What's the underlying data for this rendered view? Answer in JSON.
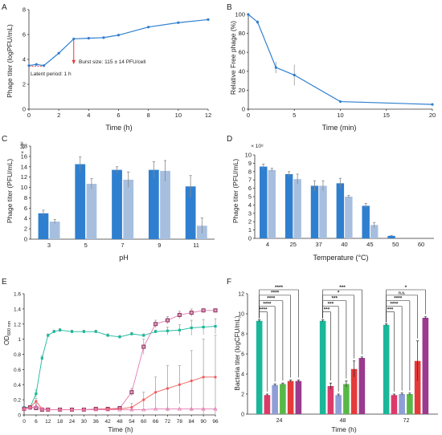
{
  "colors": {
    "blue": "#2f7fd0",
    "lightblue": "#a7bfdf",
    "teal": "#1bb79a",
    "maroon": "#8a2b55",
    "salmon": "#f05a5a",
    "pink": "#e37bb0",
    "purple": "#9b3a8e",
    "periwinkle": "#8e9ed6",
    "green": "#58b847",
    "red": "#e53a3a",
    "crimson": "#dc3b6a",
    "errbar": "#999999"
  },
  "chart_data": [
    {
      "panel": "A",
      "type": "line",
      "xlabel": "Time (h)",
      "ylabel": "Phage titer (logPFU/mL)",
      "xlim": [
        0,
        12
      ],
      "ylim": [
        0,
        8
      ],
      "xticks": [
        0,
        2,
        4,
        6,
        8,
        10,
        12
      ],
      "yticks": [
        0,
        2,
        4,
        6,
        8
      ],
      "x": [
        0,
        0.5,
        1,
        2,
        3,
        4,
        5,
        6,
        8,
        10,
        12
      ],
      "y": [
        3.5,
        3.6,
        3.5,
        4.5,
        5.65,
        5.7,
        5.75,
        5.95,
        6.6,
        6.95,
        7.2
      ],
      "annotations": [
        "Burst size: 115 ± 14 PFU/cell",
        "Latent period: 1 h"
      ]
    },
    {
      "panel": "B",
      "type": "line",
      "xlabel": "Time (min)",
      "ylabel": "Relative Free phage (%)",
      "xlim": [
        0,
        20
      ],
      "ylim": [
        0,
        100
      ],
      "xticks": [
        0,
        5,
        10,
        15,
        20
      ],
      "yticks": [
        0,
        20,
        40,
        60,
        80,
        100
      ],
      "x": [
        0,
        1,
        3,
        5,
        10,
        20
      ],
      "y": [
        100,
        92,
        44,
        36,
        8,
        5
      ],
      "err": [
        0,
        2,
        6,
        11,
        1,
        1
      ]
    },
    {
      "panel": "C",
      "type": "bar",
      "xlabel": "pH",
      "ylabel": "Phage titer (PFU/mL)",
      "yscale_label": "× 10⁸",
      "ylim": [
        0,
        18
      ],
      "yticks": [
        0,
        2,
        4,
        6,
        8,
        10,
        12,
        14,
        16,
        18
      ],
      "categories": [
        "3",
        "5",
        "7",
        "9",
        "11"
      ],
      "series": [
        {
          "values": [
            5.0,
            14.5,
            13.4,
            13.4,
            10.2
          ],
          "err": [
            0.6,
            1.4,
            0.6,
            1.6,
            2.1
          ]
        },
        {
          "values": [
            3.4,
            10.7,
            11.5,
            13.2,
            2.6
          ],
          "err": [
            0.4,
            1.0,
            1.5,
            2.0,
            1.5
          ]
        }
      ]
    },
    {
      "panel": "D",
      "type": "bar",
      "xlabel": "Temperature (°C)",
      "ylabel": "Phage titer (PFU/mL)",
      "yscale_label": "× 10⁸",
      "ylim": [
        0,
        10
      ],
      "yticks": [
        0,
        1,
        2,
        3,
        4,
        5,
        6,
        7,
        8,
        9,
        10
      ],
      "categories": [
        "4",
        "25",
        "37",
        "40",
        "45",
        "50",
        "60"
      ],
      "series": [
        {
          "values": [
            8.6,
            7.7,
            6.3,
            6.6,
            3.9,
            0.3,
            0
          ],
          "err": [
            0.3,
            0.3,
            0.6,
            0.6,
            0.3,
            0.05,
            0
          ]
        },
        {
          "values": [
            8.2,
            7.1,
            6.3,
            5.0,
            1.6,
            0,
            0
          ],
          "err": [
            0.2,
            0.6,
            0.6,
            0.15,
            0.3,
            0,
            0
          ]
        }
      ]
    },
    {
      "panel": "E",
      "type": "line",
      "xlabel": "Time (h)",
      "ylabel": "OD600 nm",
      "ylabel_main": "OD",
      "ylabel_sub": "600 nm",
      "xlim": [
        0,
        96
      ],
      "ylim": [
        0,
        1.6
      ],
      "xticks": [
        0,
        6,
        12,
        18,
        24,
        30,
        36,
        42,
        48,
        54,
        60,
        66,
        72,
        78,
        84,
        90,
        96
      ],
      "yticks": [
        0,
        0.2,
        0.4,
        0.6,
        0.8,
        1.0,
        1.2,
        1.4,
        1.6
      ],
      "ytick_labels": [
        "0",
        "0.2",
        "0.4",
        "0.6",
        "0.8",
        "1",
        "1.2",
        "1.4",
        "1.6"
      ],
      "series": [
        {
          "x": [
            0,
            3,
            6,
            9,
            12,
            15,
            18,
            24,
            30,
            36,
            42,
            48,
            54,
            60,
            66,
            72,
            78,
            84,
            90,
            96
          ],
          "y": [
            0.1,
            0.1,
            0.28,
            0.75,
            1.05,
            1.1,
            1.12,
            1.1,
            1.1,
            1.1,
            1.05,
            1.03,
            1.07,
            1.05,
            1.1,
            1.11,
            1.12,
            1.15,
            1.16,
            1.17
          ],
          "err": [
            0,
            0,
            0.05,
            0.03,
            0.02,
            0.02,
            0.02,
            0.02,
            0.02,
            0.02,
            0.02,
            0.02,
            0.02,
            0.02,
            0.02,
            0.05,
            0.07,
            0.1,
            0.1,
            0.1
          ]
        },
        {
          "x": [
            0,
            3,
            6,
            9,
            12,
            18,
            24,
            30,
            36,
            42,
            48,
            54,
            60,
            66,
            72,
            78,
            84,
            90,
            96
          ],
          "y": [
            0.08,
            0.1,
            0.09,
            0.07,
            0.07,
            0.07,
            0.07,
            0.07,
            0.08,
            0.08,
            0.09,
            0.3,
            0.9,
            1.2,
            1.25,
            1.32,
            1.35,
            1.38,
            1.38
          ],
          "err": [
            0,
            0,
            0.02,
            0,
            0,
            0,
            0,
            0,
            0,
            0,
            0,
            0.05,
            0.1,
            0.05,
            0.05,
            0.05,
            0.05,
            0.02,
            0.02
          ]
        },
        {
          "x": [
            0,
            3,
            6,
            9,
            12,
            18,
            24,
            30,
            36,
            42,
            48,
            54,
            60,
            66,
            72,
            78,
            84,
            90,
            96
          ],
          "y": [
            0.08,
            0.1,
            0.18,
            0.08,
            0.07,
            0.07,
            0.07,
            0.07,
            0.07,
            0.08,
            0.08,
            0.1,
            0.2,
            0.3,
            0.35,
            0.4,
            0.45,
            0.5,
            0.5
          ],
          "err": [
            0,
            0,
            0.04,
            0,
            0,
            0,
            0,
            0,
            0,
            0,
            0,
            0.05,
            0.1,
            0.2,
            0.3,
            0.25,
            0.4,
            0.5,
            0.55
          ]
        },
        {
          "x": [
            0,
            3,
            6,
            9,
            12,
            18,
            24,
            30,
            36,
            42,
            48,
            54,
            60,
            66,
            72,
            78,
            84,
            90,
            96
          ],
          "y": [
            0.08,
            0.09,
            0.12,
            0.08,
            0.07,
            0.07,
            0.07,
            0.07,
            0.07,
            0.07,
            0.07,
            0.07,
            0.07,
            0.08,
            0.08,
            0.08,
            0.08,
            0.08,
            0.08
          ],
          "err": [
            0,
            0,
            0.03,
            0,
            0,
            0,
            0,
            0,
            0,
            0,
            0,
            0,
            0,
            0,
            0,
            0,
            0,
            0,
            0
          ]
        }
      ]
    },
    {
      "panel": "F",
      "type": "bar",
      "xlabel": "Time (h)",
      "ylabel": "Bacteria titer (logCFU/mL)",
      "ylim": [
        0,
        12
      ],
      "yticks": [
        0,
        2,
        4,
        6,
        8,
        10,
        12
      ],
      "categories": [
        "24",
        "48",
        "72"
      ],
      "series": [
        {
          "values": [
            9.3,
            9.3,
            8.9
          ],
          "err": [
            0.1,
            0.1,
            0.1
          ]
        },
        {
          "values": [
            1.9,
            2.8,
            1.9
          ],
          "err": [
            0.1,
            0.3,
            0.1
          ]
        },
        {
          "values": [
            2.9,
            1.9,
            2.0
          ],
          "err": [
            0.1,
            0.1,
            0.1
          ]
        },
        {
          "values": [
            3.0,
            3.0,
            2.0
          ],
          "err": [
            0.1,
            0.3,
            0.1
          ]
        },
        {
          "values": [
            3.3,
            4.5,
            5.3
          ],
          "err": [
            0.1,
            0.8,
            2.0
          ]
        },
        {
          "values": [
            3.3,
            5.6,
            9.6
          ],
          "err": [
            0.1,
            0.1,
            0.1
          ]
        }
      ],
      "significance": [
        {
          "group": 0,
          "to": 1,
          "label": "****"
        },
        {
          "group": 0,
          "to": 2,
          "label": "****"
        },
        {
          "group": 0,
          "to": 3,
          "label": "****"
        },
        {
          "group": 0,
          "to": 4,
          "label": "****"
        },
        {
          "group": 0,
          "to": 5,
          "label": "****"
        },
        {
          "group": 1,
          "to": 1,
          "label": "***"
        },
        {
          "group": 1,
          "to": 2,
          "label": "***"
        },
        {
          "group": 1,
          "to": 3,
          "label": "***"
        },
        {
          "group": 1,
          "to": 4,
          "label": "*"
        },
        {
          "group": 1,
          "to": 5,
          "label": "***"
        },
        {
          "group": 2,
          "to": 1,
          "label": "***"
        },
        {
          "group": 2,
          "to": 2,
          "label": "****"
        },
        {
          "group": 2,
          "to": 3,
          "label": "****"
        },
        {
          "group": 2,
          "to": 4,
          "label": "n.s."
        },
        {
          "group": 2,
          "to": 5,
          "label": "*"
        }
      ]
    }
  ],
  "panel_letters": [
    "A",
    "B",
    "C",
    "D",
    "E",
    "F"
  ]
}
